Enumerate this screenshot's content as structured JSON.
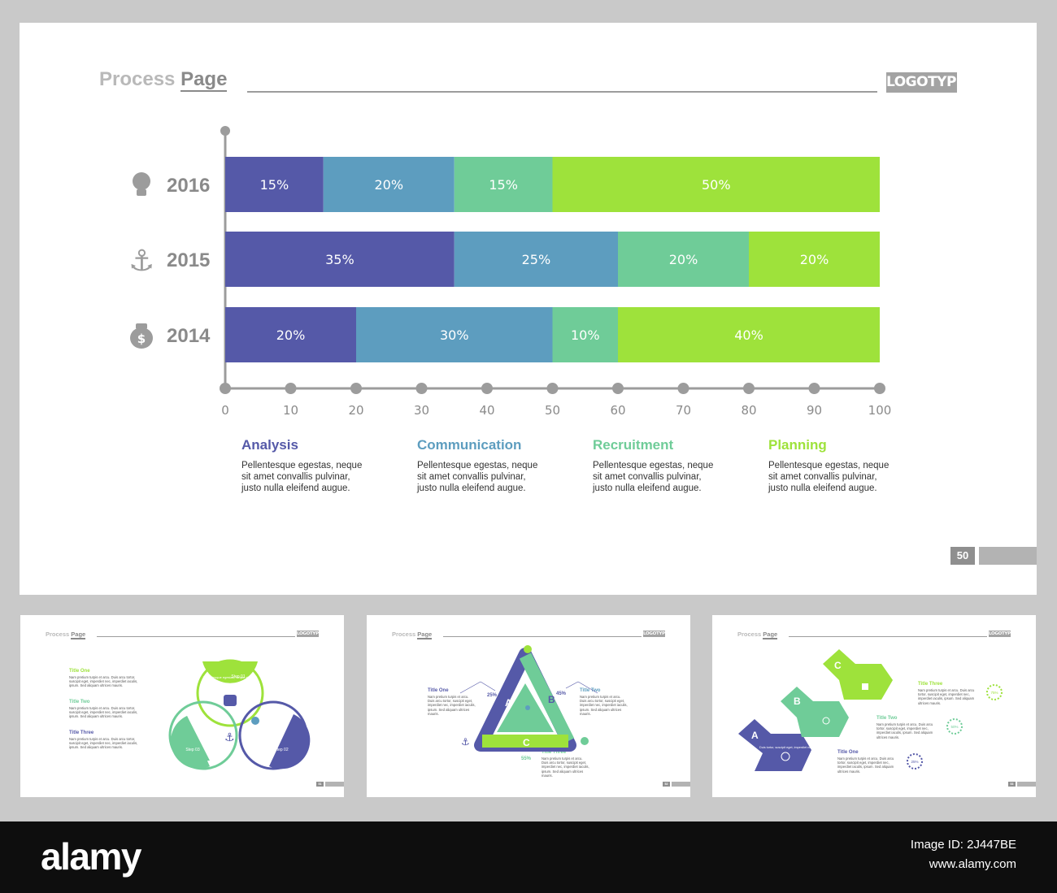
{
  "main_slide": {
    "title_part1": "Process ",
    "title_part2": "Page",
    "logo_text": "LOGOTYPE",
    "page_number": "50",
    "categories": [
      {
        "title": "Analysis",
        "desc": "Pellentesque egestas, neque sit amet convallis pulvinar, justo nulla eleifend augue."
      },
      {
        "title": "Communication",
        "desc": "Pellentesque egestas, neque sit amet convallis pulvinar, justo nulla eleifend augue."
      },
      {
        "title": "Recruitment",
        "desc": "Pellentesque egestas, neque sit amet convallis pulvinar, justo nulla eleifend augue."
      },
      {
        "title": "Planning",
        "desc": "Pellentesque egestas, neque sit amet convallis pulvinar, justo nulla eleifend augue."
      }
    ]
  },
  "chart_data": {
    "type": "bar",
    "orientation": "horizontal",
    "stacked": true,
    "categories": [
      "2016",
      "2015",
      "2014"
    ],
    "category_icons": [
      "lightbulb-icon",
      "anchor-icon",
      "money-bag-icon"
    ],
    "series": [
      {
        "name": "Analysis",
        "values": [
          15,
          35,
          20
        ],
        "labels": [
          "15%",
          "35%",
          "20%"
        ],
        "color": "#5559a8"
      },
      {
        "name": "Communication",
        "values": [
          20,
          25,
          30
        ],
        "labels": [
          "20%",
          "25%",
          "30%"
        ],
        "color": "#5d9dbf"
      },
      {
        "name": "Recruitment",
        "values": [
          15,
          20,
          10
        ],
        "labels": [
          "15%",
          "20%",
          "10%"
        ],
        "color": "#6fcc98"
      },
      {
        "name": "Planning",
        "values": [
          50,
          20,
          40
        ],
        "labels": [
          "50%",
          "20%",
          "40%"
        ],
        "color": "#9ee23b"
      }
    ],
    "xlim": [
      0,
      100
    ],
    "xticks": [
      "0",
      "10",
      "20",
      "30",
      "40",
      "50",
      "60",
      "70",
      "80",
      "90",
      "100"
    ],
    "grid": false,
    "legend": "bottom"
  },
  "thumbnails": [
    {
      "title_part1": "Process ",
      "title_part2": "Page",
      "logo_text": "LOGOTYPE",
      "page_number": "51",
      "items": [
        {
          "title": "Title One",
          "desc": "Nam pretium turpis et arcu. Duis arcu tortor, suscipit eget, imperdiet nec, imperdiet iaculis, ipsum. Sed aliquam ultrices mauris."
        },
        {
          "title": "Title Two",
          "desc": "Nam pretium turpis et arcu. Duis arcu tortor, suscipit eget, imperdiet nec, imperdiet iaculis, ipsum. Sed aliquam ultrices mauris."
        },
        {
          "title": "Title Three",
          "desc": "Nam pretium turpis et arcu. Duis arcu tortor, suscipit eget, imperdiet nec, imperdiet iaculis, ipsum. Sed aliquam ultrices mauris."
        }
      ],
      "steps": [
        "Step 01",
        "Step 02",
        "Step 03"
      ],
      "step_text": "Pellentesque egestas, neque sit amet"
    },
    {
      "title_part1": "Process ",
      "title_part2": "Page",
      "logo_text": "LOGOTYPE",
      "page_number": "52",
      "items": [
        {
          "title": "Title One",
          "desc": "Nam pretium turpis et arcu. Duis arcu tortor, suscipit eget, imperdiet nec, imperdiet iaculis, ipsum. Sed aliquam ultrices mauris."
        },
        {
          "title": "Title Two",
          "desc": "Nam pretium turpis et arcu. Duis arcu tortor, suscipit eget, imperdiet nec, imperdiet iaculis, ipsum. Sed aliquam ultrices mauris."
        },
        {
          "title": "Title Three",
          "desc": "Nam pretium turpis et arcu. Duis arcu tortor, suscipit eget, imperdiet nec, imperdiet iaculis, ipsum. Sed aliquam ultrices mauris."
        }
      ],
      "letters": [
        "A",
        "B",
        "C"
      ],
      "percents": [
        "25%",
        "45%",
        "55%"
      ]
    },
    {
      "title_part1": "Process ",
      "title_part2": "Page",
      "logo_text": "LOGOTYPE",
      "page_number": "53",
      "items": [
        {
          "title": "Title Three",
          "desc": "Nam pretium turpis et arcu. Duis arcu tortor, suscipit eget, imperdiet nec, imperdiet iaculis, ipsum. Sed aliquam ultrices mauris."
        },
        {
          "title": "Title Two",
          "desc": "Nam pretium turpis et arcu. Duis arcu tortor, suscipit eget, imperdiet nec, imperdiet iaculis, ipsum. Sed aliquam ultrices mauris."
        },
        {
          "title": "Title One",
          "desc": "Nam pretium turpis et arcu. Duis arcu tortor, suscipit eget, imperdiet nec, imperdiet iaculis, ipsum. Sed aliquam ultrices mauris."
        }
      ],
      "letters": [
        "A",
        "B",
        "C"
      ],
      "percents": [
        "75%",
        "50%",
        "25%"
      ],
      "step_text": "Duis tortor, suscipit eget, imperdiet nec, imperdiet"
    }
  ],
  "watermark": {
    "brand": "alamy",
    "image_id_label": "Image ID: 2J447BE",
    "site": "www.alamy.com"
  },
  "colors": {
    "navy": "#5559a8",
    "blue": "#5d9dbf",
    "mint": "#6fcc98",
    "lime": "#9ee23b",
    "gray": "#9c9c9c"
  }
}
